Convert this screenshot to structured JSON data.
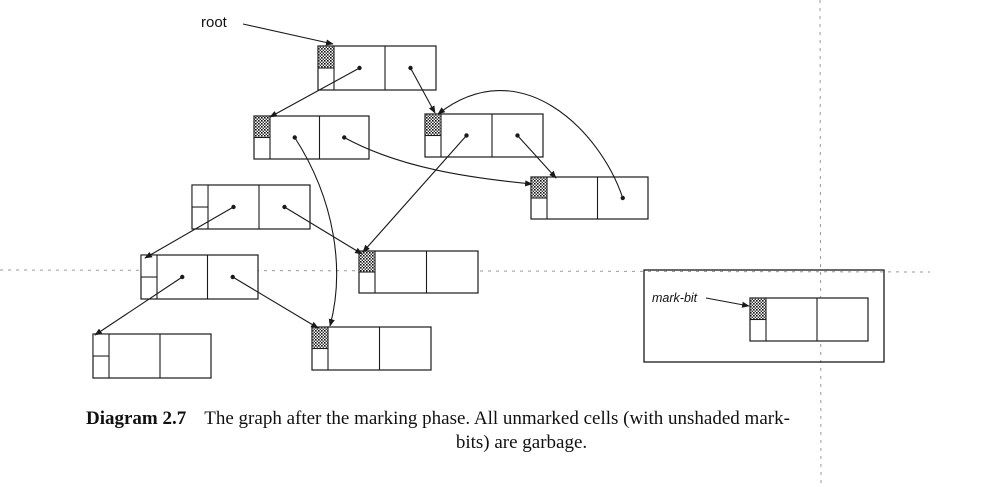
{
  "root_label": "root",
  "mark_bit_label": "mark-bit",
  "caption": {
    "label": "Diagram 2.7",
    "line1": "The graph after the marking phase. All unmarked cells (with unshaded mark-",
    "line2": "bits) are garbage."
  },
  "cells": [
    {
      "id": "c1",
      "marked": true
    },
    {
      "id": "c2",
      "marked": true
    },
    {
      "id": "c3",
      "marked": true
    },
    {
      "id": "c4",
      "marked": true
    },
    {
      "id": "c5",
      "marked": false
    },
    {
      "id": "c6",
      "marked": true
    },
    {
      "id": "c7",
      "marked": false
    },
    {
      "id": "c8",
      "marked": false
    },
    {
      "id": "c9",
      "marked": true
    },
    {
      "id": "c10",
      "marked": true
    }
  ]
}
